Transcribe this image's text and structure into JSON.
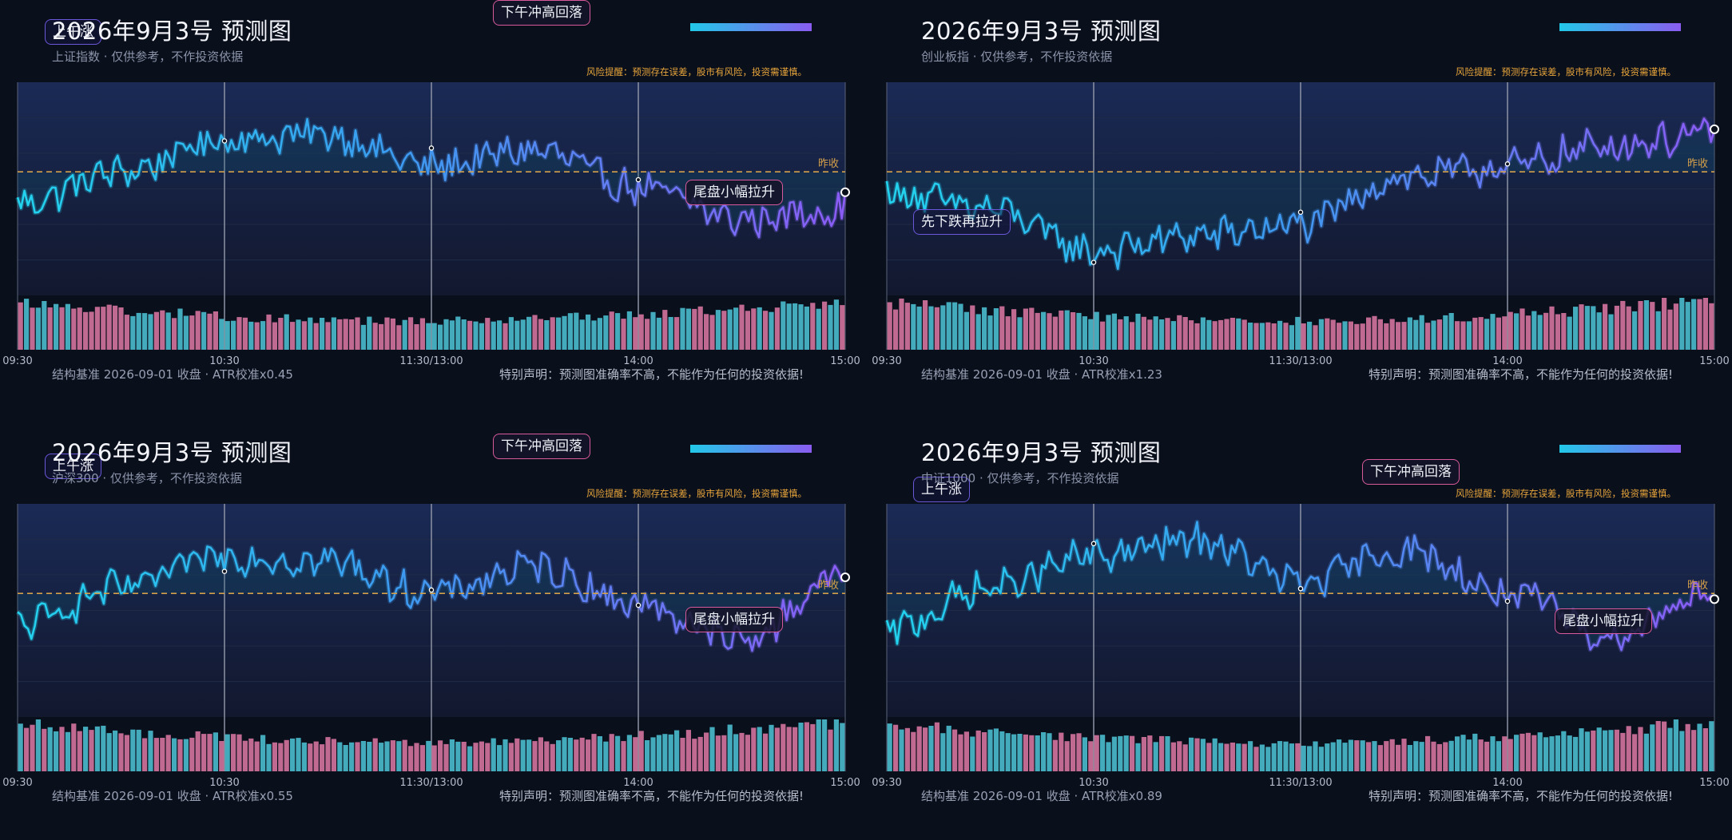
{
  "panels": [
    {
      "title": "2026年9月3号 预测图",
      "subtitle": "上证指数 · 仅供参考，不作投资依据",
      "risk_note": "风险提醒：预测存在误差，股市有风险，投资需谨慎。",
      "footer_left": "结构基准 2026-09-01 收盘 · ATR校准x0.45",
      "footer_right": "特别声明：预测图准确率不高，不能作为任何的投资依据!",
      "top_tag": "下午冲高回落",
      "corner_tag": "上午涨",
      "annotation": "尾盘小幅拉升",
      "prev_close_label": "昨收",
      "x_ticks": [
        "09:30",
        "10:30",
        "11:30/13:00",
        "14:00",
        "15:00"
      ]
    },
    {
      "title": "2026年9月3号 预测图",
      "subtitle": "创业板指 · 仅供参考，不作投资依据",
      "risk_note": "风险提醒：预测存在误差，股市有风险，投资需谨慎。",
      "footer_left": "结构基准 2026-09-01 收盘 · ATR校准x1.23",
      "footer_right": "特别声明：预测图准确率不高，不能作为任何的投资依据!",
      "annotation": "先下跌再拉升",
      "prev_close_label": "昨收",
      "x_ticks": [
        "09:30",
        "10:30",
        "11:30/13:00",
        "14:00",
        "15:00"
      ]
    },
    {
      "title": "2026年9月3号 预测图",
      "subtitle": "沪深300 · 仅供参考，不作投资依据",
      "risk_note": "风险提醒：预测存在误差，股市有风险，投资需谨慎。",
      "footer_left": "结构基准 2026-09-01 收盘 · ATR校准x0.55",
      "footer_right": "特别声明：预测图准确率不高，不能作为任何的投资依据!",
      "top_tag": "下午冲高回落",
      "corner_tag": "上午涨",
      "annotation": "尾盘小幅拉升",
      "prev_close_label": "昨收",
      "x_ticks": [
        "09:30",
        "10:30",
        "11:30/13:00",
        "14:00",
        "15:00"
      ]
    },
    {
      "title": "2026年9月3号 预测图",
      "subtitle": "中证1000 · 仅供参考，不作投资依据",
      "risk_note": "风险提醒：预测存在误差，股市有风险，投资需谨慎。",
      "footer_left": "结构基准 2026-09-01 收盘 · ATR校准x0.89",
      "footer_right": "特别声明：预测图准确率不高，不能作为任何的投资依据!",
      "top_tag": "下午冲高回落",
      "corner_tag": "上午涨",
      "annotation": "尾盘小幅拉升",
      "prev_close_label": "昨收",
      "x_ticks": [
        "09:30",
        "10:30",
        "11:30/13:00",
        "14:00",
        "15:00"
      ]
    }
  ],
  "colors": {
    "background": "#0a0f1c",
    "plot_background": "#12182e",
    "line_start": "#22d3ee",
    "line_mid": "#3b9cf0",
    "line_end": "#8b5cf6",
    "prev_close": "#d4a04a",
    "volume_up": "#e27aa6",
    "volume_down": "#4ec7d8",
    "risk_text": "#e8a63a"
  },
  "chart_data": [
    {
      "type": "line",
      "title": "2026年9月3号 预测图",
      "xlabel": "",
      "ylabel": "",
      "x_ticks": [
        "09:30",
        "10:30",
        "11:30/13:00",
        "14:00",
        "15:00"
      ],
      "shape": "上午涨，下午冲高回落，尾盘小幅拉升",
      "x": [
        "09:30",
        "10:00",
        "10:30",
        "11:00",
        "11:30/13:00",
        "13:30",
        "14:00",
        "14:30",
        "15:00"
      ],
      "y_offset_from_prev_close": [
        -0.3,
        0.0,
        0.3,
        0.35,
        0.05,
        0.2,
        -0.15,
        -0.45,
        -0.35
      ],
      "volume": "decreasing into midday, rising into close"
    },
    {
      "type": "line",
      "title": "2026年9月3号 预测图",
      "xlabel": "",
      "ylabel": "",
      "x_ticks": [
        "09:30",
        "10:30",
        "11:30/13:00",
        "14:00",
        "15:00"
      ],
      "shape": "先下跌再拉升",
      "x": [
        "09:30",
        "10:00",
        "10:30",
        "11:00",
        "11:30/13:00",
        "13:30",
        "14:00",
        "14:30",
        "15:00"
      ],
      "y_offset_from_prev_close": [
        -0.2,
        -0.35,
        -0.75,
        -0.6,
        -0.5,
        -0.05,
        0.05,
        0.25,
        0.35
      ],
      "volume": "decreasing into midday, rising into close"
    },
    {
      "type": "line",
      "title": "2026年9月3号 预测图",
      "xlabel": "",
      "ylabel": "",
      "x_ticks": [
        "09:30",
        "10:30",
        "11:30/13:00",
        "14:00",
        "15:00"
      ],
      "shape": "上午涨，下午冲高回落，尾盘小幅拉升",
      "x": [
        "09:30",
        "10:00",
        "10:30",
        "11:00",
        "11:30/13:00",
        "13:30",
        "14:00",
        "14:30",
        "15:00"
      ],
      "y_offset_from_prev_close": [
        -0.3,
        0.05,
        0.35,
        0.3,
        0.0,
        0.25,
        -0.1,
        -0.45,
        0.2
      ],
      "volume": "decreasing into midday, rising into close"
    },
    {
      "type": "line",
      "title": "2026年9月3号 预测图",
      "xlabel": "",
      "ylabel": "",
      "x_ticks": [
        "09:30",
        "10:30",
        "11:30/13:00",
        "14:00",
        "15:00"
      ],
      "shape": "上午涨，下午冲高回落，尾盘小幅拉升",
      "x": [
        "09:30",
        "10:00",
        "10:30",
        "11:00",
        "11:30/13:00",
        "13:30",
        "14:00",
        "14:30",
        "15:00"
      ],
      "y_offset_from_prev_close": [
        -0.35,
        0.05,
        0.35,
        0.5,
        0.1,
        0.4,
        0.0,
        -0.4,
        0.05
      ],
      "volume": "decreasing into midday, rising into close"
    }
  ]
}
